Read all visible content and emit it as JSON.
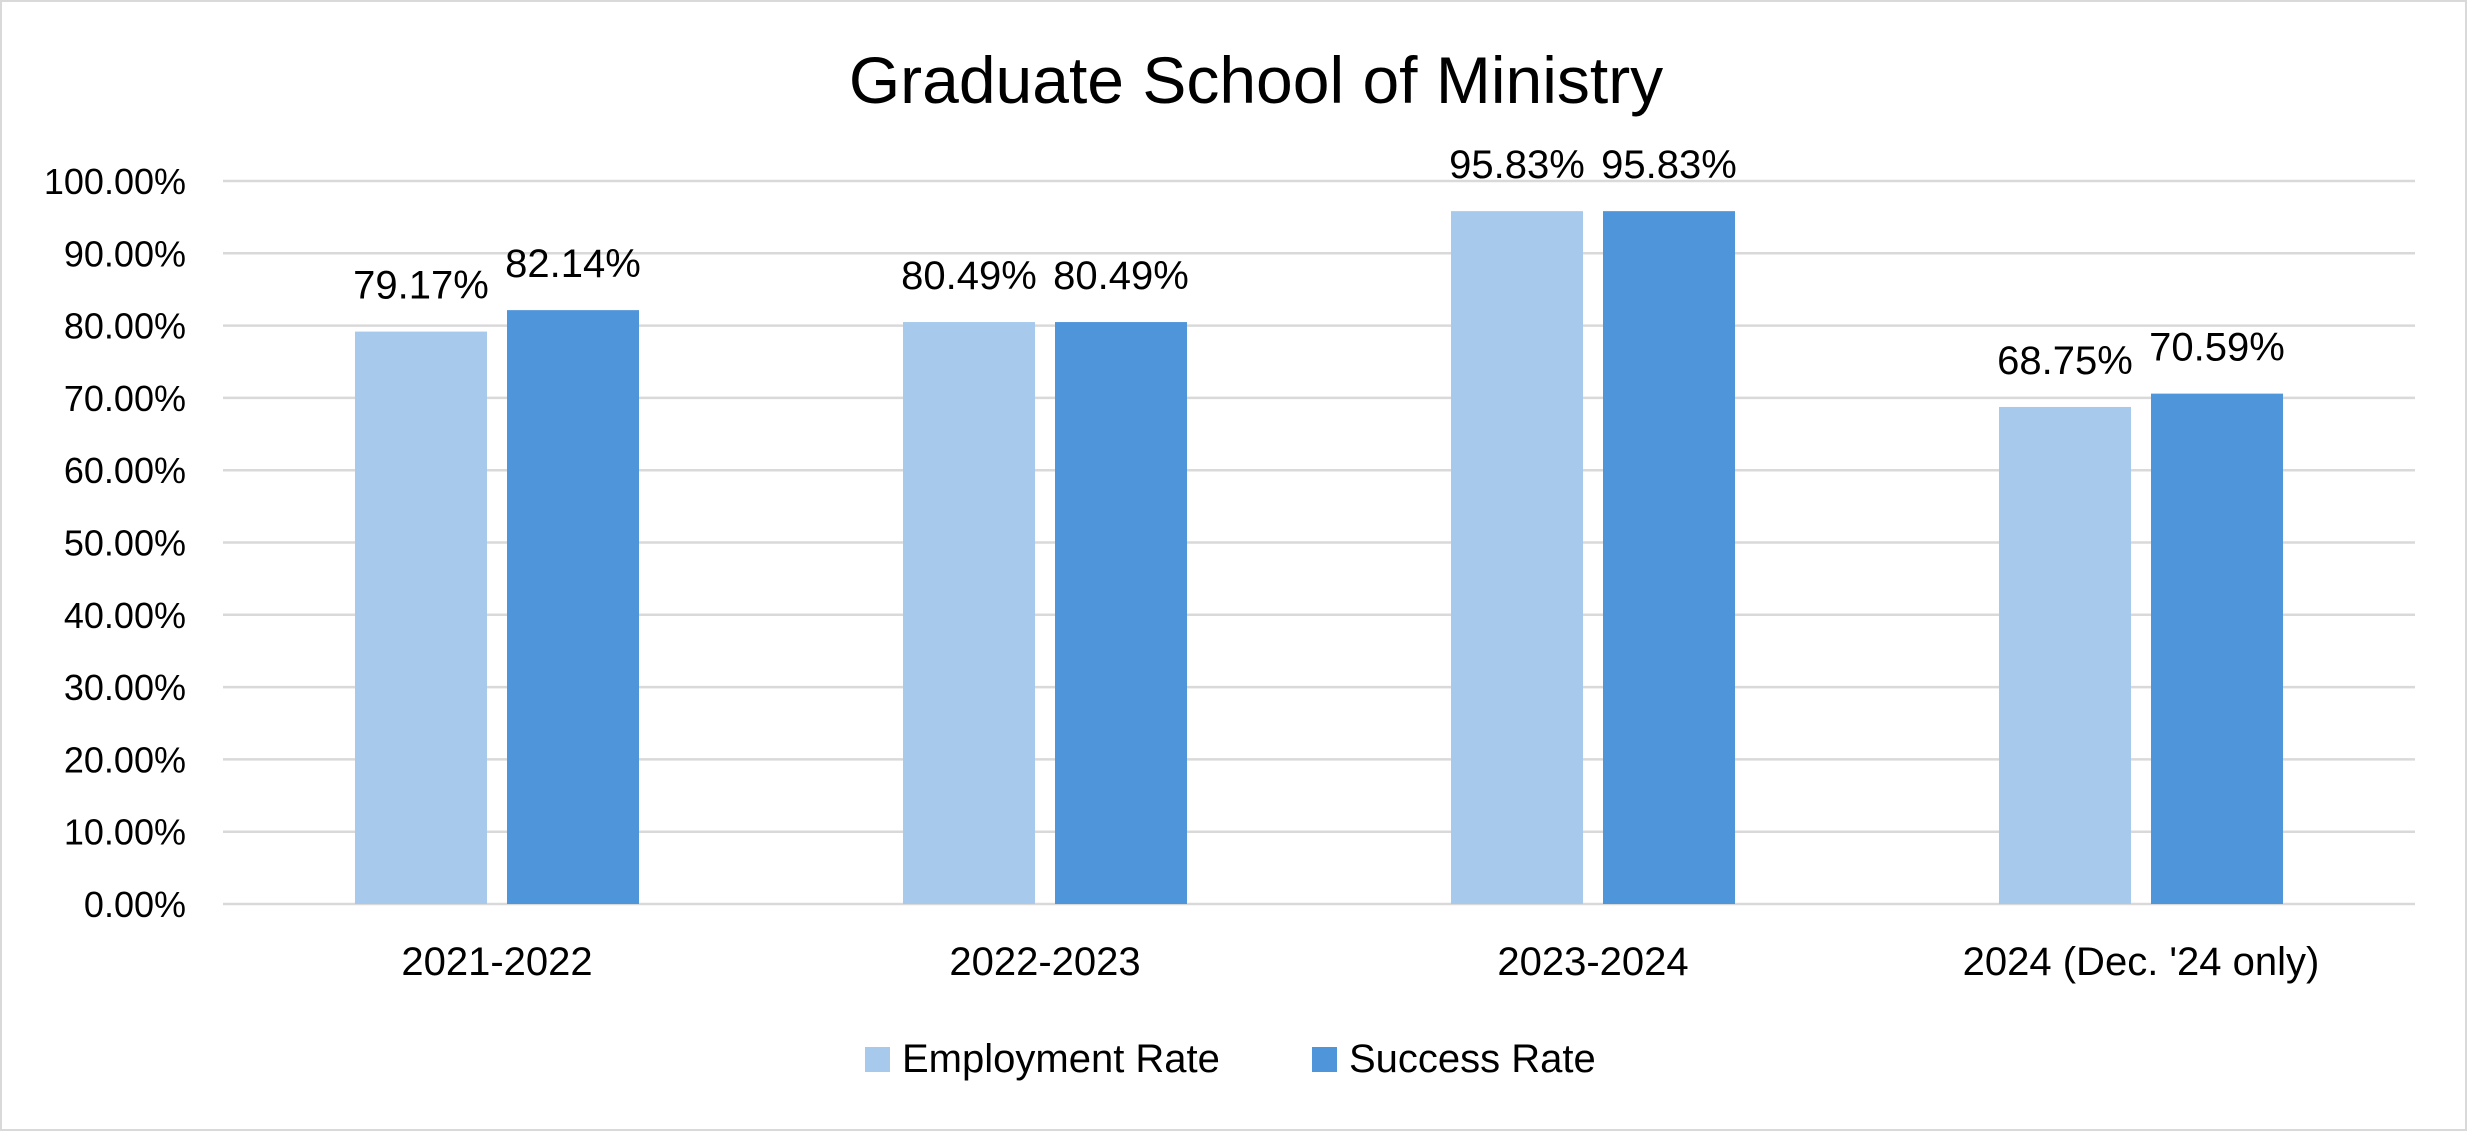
{
  "chart_data": {
    "type": "bar",
    "title": "Graduate School of Ministry",
    "categories": [
      "2021-2022",
      "2022-2023",
      "2023-2024",
      "2024 (Dec. '24 only)"
    ],
    "series": [
      {
        "name": "Employment Rate",
        "color": "#a6c9ec",
        "values": [
          79.17,
          80.49,
          95.83,
          68.75
        ],
        "labels": [
          "79.17%",
          "80.49%",
          "95.83%",
          "68.75%"
        ]
      },
      {
        "name": "Success Rate",
        "color": "#4f95da",
        "values": [
          82.14,
          80.49,
          95.83,
          70.59
        ],
        "labels": [
          "82.14%",
          "80.49%",
          "95.83%",
          "70.59%"
        ]
      }
    ],
    "ylim": [
      0,
      100
    ],
    "yticks": [
      0,
      10,
      20,
      30,
      40,
      50,
      60,
      70,
      80,
      90,
      100
    ],
    "ytick_labels": [
      "0.00%",
      "10.00%",
      "20.00%",
      "30.00%",
      "40.00%",
      "50.00%",
      "60.00%",
      "70.00%",
      "80.00%",
      "90.00%",
      "100.00%"
    ],
    "xlabel": "",
    "ylabel": "",
    "grid": true,
    "legend_position": "bottom"
  }
}
